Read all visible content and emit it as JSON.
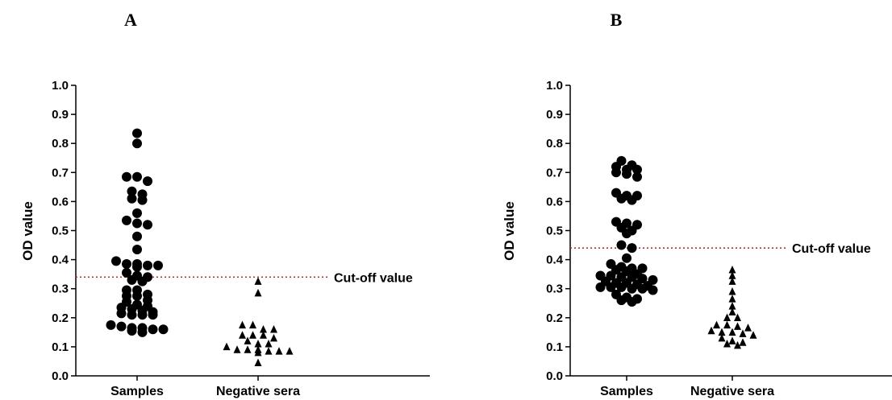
{
  "chart_data": [
    {
      "panel_label": "A",
      "type": "scatter",
      "ylabel": "OD value",
      "ylim": [
        0,
        1.0
      ],
      "yticks": [
        "0.0",
        "0.1",
        "0.2",
        "0.3",
        "0.4",
        "0.5",
        "0.6",
        "0.7",
        "0.8",
        "0.9",
        "1.0"
      ],
      "categories": [
        "Samples",
        "Negative sera"
      ],
      "cutoff": {
        "value": 0.34,
        "label": "Cut-off value"
      },
      "series": [
        {
          "category": "Samples",
          "marker": "circle",
          "values": [
            0.835,
            0.8,
            0.685,
            0.685,
            0.67,
            0.635,
            0.625,
            0.61,
            0.605,
            0.56,
            0.535,
            0.525,
            0.52,
            0.48,
            0.435,
            0.395,
            0.385,
            0.385,
            0.38,
            0.38,
            0.375,
            0.355,
            0.345,
            0.34,
            0.33,
            0.325,
            0.295,
            0.295,
            0.28,
            0.275,
            0.275,
            0.26,
            0.255,
            0.245,
            0.24,
            0.235,
            0.23,
            0.225,
            0.22,
            0.215,
            0.21,
            0.21,
            0.21,
            0.175,
            0.17,
            0.165,
            0.165,
            0.16,
            0.16,
            0.155,
            0.15
          ]
        },
        {
          "category": "Negative sera",
          "marker": "triangle",
          "values": [
            0.325,
            0.285,
            0.175,
            0.175,
            0.16,
            0.16,
            0.14,
            0.14,
            0.14,
            0.13,
            0.12,
            0.11,
            0.11,
            0.1,
            0.09,
            0.09,
            0.09,
            0.085,
            0.085,
            0.085,
            0.08,
            0.045
          ]
        }
      ]
    },
    {
      "panel_label": "B",
      "type": "scatter",
      "ylabel": "OD value",
      "ylim": [
        0,
        1.0
      ],
      "yticks": [
        "0.0",
        "0.1",
        "0.2",
        "0.3",
        "0.4",
        "0.5",
        "0.6",
        "0.7",
        "0.8",
        "0.9",
        "1.0"
      ],
      "categories": [
        "Samples",
        "Negative sera"
      ],
      "cutoff": {
        "value": 0.44,
        "label": "Cut-off value"
      },
      "series": [
        {
          "category": "Samples",
          "marker": "circle",
          "values": [
            0.74,
            0.725,
            0.72,
            0.71,
            0.71,
            0.7,
            0.695,
            0.685,
            0.63,
            0.62,
            0.62,
            0.61,
            0.605,
            0.53,
            0.525,
            0.52,
            0.51,
            0.5,
            0.49,
            0.45,
            0.44,
            0.405,
            0.385,
            0.375,
            0.37,
            0.37,
            0.365,
            0.36,
            0.35,
            0.345,
            0.345,
            0.34,
            0.34,
            0.335,
            0.33,
            0.325,
            0.32,
            0.32,
            0.315,
            0.31,
            0.305,
            0.305,
            0.305,
            0.3,
            0.3,
            0.295,
            0.28,
            0.27,
            0.265,
            0.26,
            0.255
          ]
        },
        {
          "category": "Negative sera",
          "marker": "triangle",
          "values": [
            0.365,
            0.345,
            0.325,
            0.29,
            0.265,
            0.24,
            0.22,
            0.2,
            0.2,
            0.175,
            0.175,
            0.17,
            0.165,
            0.155,
            0.15,
            0.15,
            0.145,
            0.14,
            0.13,
            0.12,
            0.115,
            0.11,
            0.105
          ]
        }
      ]
    }
  ]
}
